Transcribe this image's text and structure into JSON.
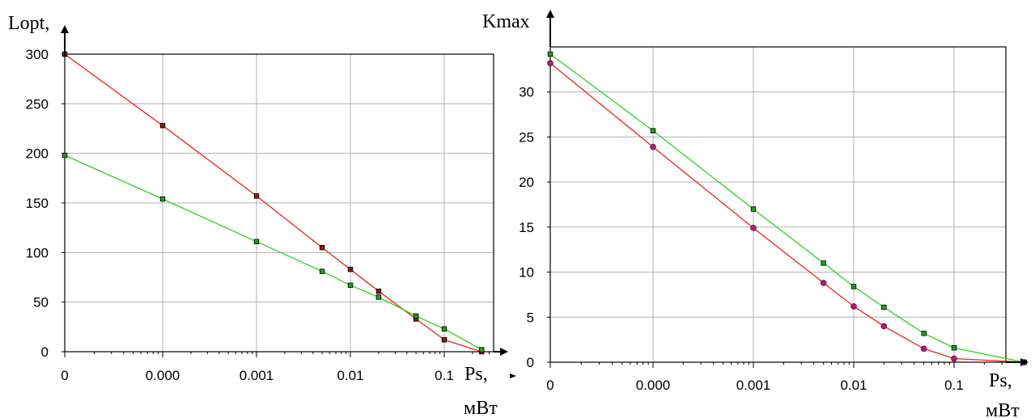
{
  "chart_data": [
    {
      "type": "line",
      "ylabel": "Lopt,",
      "xlabel": "Ps,",
      "xunit": "мВт",
      "xscale": "log",
      "ylim": [
        0,
        300
      ],
      "yticks": [
        "0",
        "50",
        "100",
        "150",
        "200",
        "250",
        "300"
      ],
      "xticks": [
        "0",
        "0.000",
        "0.001",
        "0.01",
        "0.1"
      ],
      "grid": true,
      "series": [
        {
          "color": "#e8231c",
          "marker_color": "#8b1a10",
          "marker": "square",
          "x": [
            1e-05,
            0.0001,
            0.001,
            0.005,
            0.01,
            0.02,
            0.05,
            0.1,
            0.25
          ],
          "y": [
            300,
            228,
            157,
            105,
            83,
            61,
            33,
            12,
            0
          ]
        },
        {
          "color": "#2bd21c",
          "marker_color": "#20a020",
          "marker": "square",
          "x": [
            1e-05,
            0.0001,
            0.001,
            0.005,
            0.01,
            0.02,
            0.05,
            0.1,
            0.25
          ],
          "y": [
            198,
            154,
            111,
            81,
            67,
            55,
            36,
            23,
            2
          ]
        }
      ]
    },
    {
      "type": "line",
      "ylabel": "Kmax",
      "xlabel": "Ps,",
      "xunit": "мВт",
      "xscale": "log",
      "ylim": [
        0,
        35
      ],
      "yticks": [
        "0",
        "5",
        "10",
        "15",
        "20",
        "25",
        "30"
      ],
      "xticks": [
        "0",
        "0.000",
        "0.001",
        "0.01",
        "0.1"
      ],
      "grid": true,
      "series": [
        {
          "color": "#e8231c",
          "marker_color": "#b0207a",
          "marker": "circle",
          "x": [
            1e-05,
            0.0001,
            0.001,
            0.005,
            0.01,
            0.02,
            0.05,
            0.1,
            0.5
          ],
          "y": [
            33.2,
            23.9,
            14.9,
            8.8,
            6.2,
            4.0,
            1.5,
            0.4,
            0
          ]
        },
        {
          "color": "#2bd21c",
          "marker_color": "#20a020",
          "marker": "square",
          "x": [
            1e-05,
            0.0001,
            0.001,
            0.005,
            0.01,
            0.02,
            0.05,
            0.1,
            0.5
          ],
          "y": [
            34.2,
            25.7,
            17.0,
            11.0,
            8.4,
            6.1,
            3.2,
            1.6,
            0
          ]
        }
      ]
    }
  ]
}
